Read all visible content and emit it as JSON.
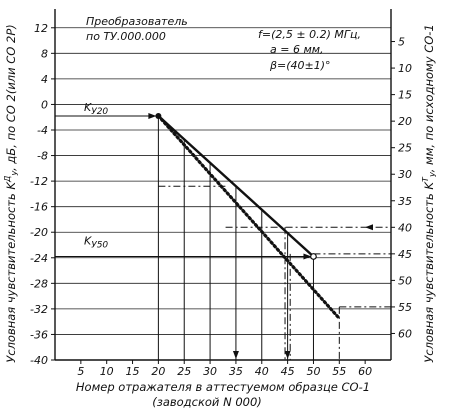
{
  "chart_data": {
    "type": "line",
    "title": "Преобразователь",
    "subtitle": "по ТУ.000.000",
    "parameters": [
      "f=(2,5 ± 0.2) МГц,",
      "a = 6 мм,",
      "β=(40±1)°"
    ],
    "xlabel": "Номер отражателя в аттестуемом образце СО-1",
    "xlabel_line2": "(заводской N 000)",
    "ylabel_left": "Условная чувствительность K",
    "ylabel_left_super": "Д",
    "ylabel_left_sub": "У",
    "ylabel_left_tail": ", дБ, по СО 2(или СО 2Р)",
    "ylabel_right": "Условная чувствительность K",
    "ylabel_right_super": "Т",
    "ylabel_right_sub": "У",
    "ylabel_right_tail": ", мм, по исходному СО-1",
    "xlim": [
      0,
      65
    ],
    "ylim_left": [
      -40,
      14
    ],
    "ylim_right": [
      0,
      65
    ],
    "x_ticks": [
      "5",
      "10",
      "15",
      "20",
      "25",
      "30",
      "35",
      "40",
      "45",
      "50",
      "55",
      "60"
    ],
    "y_left_ticks": [
      "12",
      "8",
      "4",
      "0",
      "-4",
      "-8",
      "-12",
      "-16",
      "-20",
      "-24",
      "-28",
      "-32",
      "-36",
      "-40"
    ],
    "y_right_ticks": [
      "5",
      "10",
      "15",
      "20",
      "25",
      "30",
      "35",
      "40",
      "45",
      "50",
      "55",
      "60"
    ],
    "series": [
      {
        "style": "solid",
        "x": [
          20,
          50
        ],
        "y": [
          -1.8,
          -23.8
        ]
      },
      {
        "style": "dotted",
        "x": [
          20,
          55
        ],
        "y": [
          -1.8,
          -33.5
        ]
      }
    ],
    "annotations": [
      {
        "label": "K",
        "sub": "У20",
        "x": 20,
        "y": -1.8
      },
      {
        "label": "K",
        "sub": "У50",
        "x": 50,
        "y": -23.8
      }
    ],
    "grid": "horizontal lines at left-axis ticks and vertical projection lines",
    "legend": "none"
  }
}
